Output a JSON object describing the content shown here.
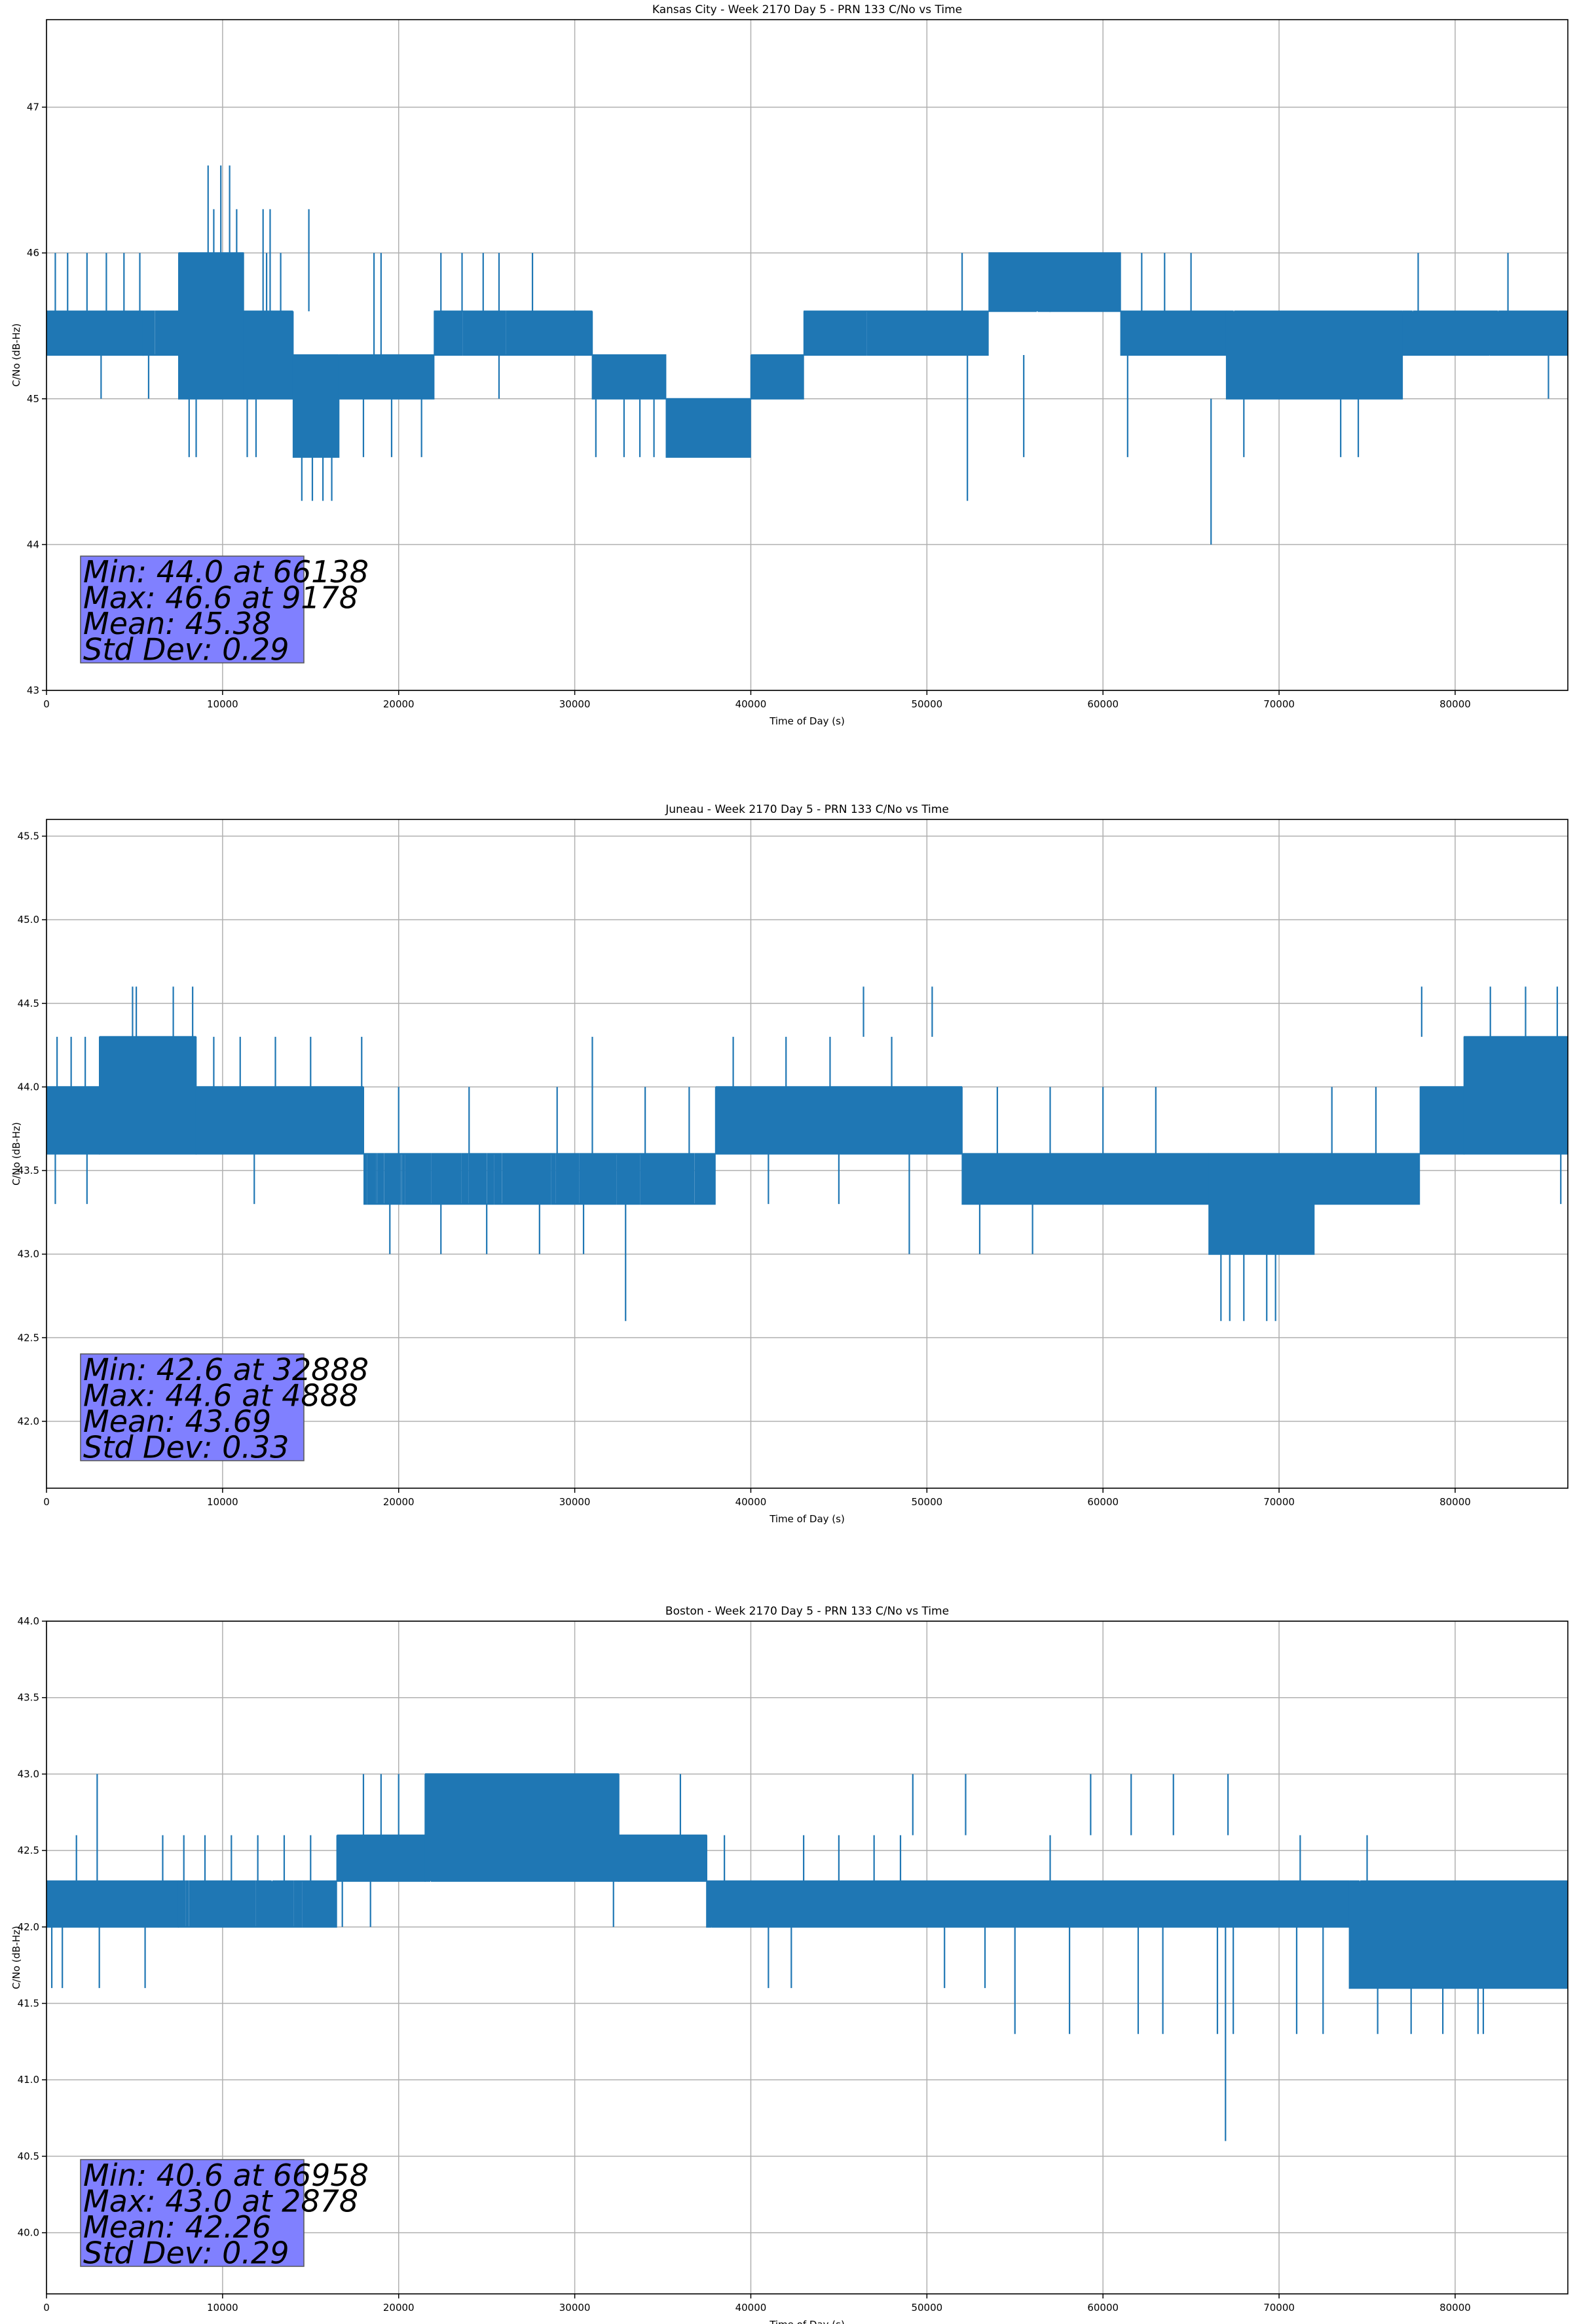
{
  "chart_data": [
    {
      "type": "line",
      "title": "Kansas City - Week 2170 Day 5 - PRN 133 C/No vs Time",
      "xlabel": "Time of Day (s)",
      "ylabel": "C/No (dB-Hz)",
      "xlim": [
        0,
        86400
      ],
      "ylim": [
        43.0,
        47.6
      ],
      "xticks": [
        0,
        10000,
        20000,
        30000,
        40000,
        50000,
        60000,
        70000,
        80000
      ],
      "yticks": [
        43,
        44,
        45,
        46,
        47
      ],
      "ytick_labels": [
        "43",
        "44",
        "45",
        "46",
        "47"
      ],
      "grid": true,
      "color": "#1f77b4",
      "stats": [
        "Min: 44.0 at 66138",
        "Max: 46.6 at 9178",
        "Mean: 45.38",
        "Std Dev: 0.29"
      ],
      "segments": [
        {
          "x": [
            0,
            5500
          ],
          "lo": 45.3,
          "hi": 45.6,
          "n": 160
        },
        {
          "x": [
            5500,
            7500
          ],
          "lo": 45.3,
          "hi": 45.6,
          "n": 40
        },
        {
          "x": [
            7500,
            11200
          ],
          "lo": 45.0,
          "hi": 46.0,
          "n": 130
        },
        {
          "x": [
            11200,
            14000
          ],
          "lo": 45.0,
          "hi": 45.6,
          "n": 90
        },
        {
          "x": [
            14000,
            16600
          ],
          "lo": 44.6,
          "hi": 45.3,
          "n": 90
        },
        {
          "x": [
            16600,
            22000
          ],
          "lo": 45.0,
          "hi": 45.3,
          "n": 140
        },
        {
          "x": [
            22000,
            31000
          ],
          "lo": 45.3,
          "hi": 45.6,
          "n": 200
        },
        {
          "x": [
            31000,
            35200
          ],
          "lo": 45.0,
          "hi": 45.3,
          "n": 100
        },
        {
          "x": [
            35200,
            40000
          ],
          "lo": 44.6,
          "hi": 45.0,
          "n": 140
        },
        {
          "x": [
            40000,
            43000
          ],
          "lo": 45.0,
          "hi": 45.3,
          "n": 90
        },
        {
          "x": [
            43000,
            53500
          ],
          "lo": 45.3,
          "hi": 45.6,
          "n": 240
        },
        {
          "x": [
            53500,
            57000
          ],
          "lo": 45.6,
          "hi": 46.0,
          "n": 90
        },
        {
          "x": [
            57000,
            61000
          ],
          "lo": 45.6,
          "hi": 46.0,
          "n": 220
        },
        {
          "x": [
            61000,
            67000
          ],
          "lo": 45.3,
          "hi": 45.6,
          "n": 180
        },
        {
          "x": [
            67000,
            77000
          ],
          "lo": 45.0,
          "hi": 45.6,
          "n": 280
        },
        {
          "x": [
            77000,
            86400
          ],
          "lo": 45.3,
          "hi": 45.6,
          "n": 260
        }
      ],
      "spikes": [
        [
          500,
          45.6,
          46.0
        ],
        [
          1200,
          45.6,
          46.0
        ],
        [
          2300,
          45.6,
          46.0
        ],
        [
          3400,
          45.6,
          46.0
        ],
        [
          4400,
          45.6,
          46.0
        ],
        [
          5300,
          45.6,
          46.0
        ],
        [
          3100,
          45.3,
          45.0
        ],
        [
          5800,
          45.3,
          45.0
        ],
        [
          8100,
          45.0,
          44.6
        ],
        [
          8500,
          45.0,
          44.6
        ],
        [
          9178,
          46.0,
          46.6
        ],
        [
          9900,
          46.0,
          46.6
        ],
        [
          10400,
          46.0,
          46.6
        ],
        [
          9500,
          46.0,
          46.3
        ],
        [
          10800,
          46.0,
          46.3
        ],
        [
          12300,
          45.6,
          46.3
        ],
        [
          12700,
          45.6,
          46.3
        ],
        [
          14900,
          45.6,
          46.3
        ],
        [
          12500,
          45.6,
          46.0
        ],
        [
          13300,
          45.6,
          46.0
        ],
        [
          11400,
          45.0,
          44.6
        ],
        [
          11900,
          45.0,
          44.6
        ],
        [
          14500,
          44.6,
          44.3
        ],
        [
          15100,
          44.6,
          44.3
        ],
        [
          15700,
          44.6,
          44.3
        ],
        [
          16200,
          44.6,
          44.3
        ],
        [
          18600,
          45.3,
          46.0
        ],
        [
          19000,
          45.3,
          46.0
        ],
        [
          18000,
          45.0,
          44.6
        ],
        [
          19600,
          45.0,
          44.6
        ],
        [
          21300,
          45.0,
          44.6
        ],
        [
          22400,
          45.6,
          46.0
        ],
        [
          23600,
          45.6,
          46.0
        ],
        [
          24800,
          45.6,
          46.0
        ],
        [
          25700,
          45.6,
          46.0
        ],
        [
          27600,
          45.6,
          46.0
        ],
        [
          25700,
          45.3,
          45.0
        ],
        [
          31200,
          45.0,
          44.6
        ],
        [
          32800,
          45.0,
          44.6
        ],
        [
          33700,
          45.0,
          44.6
        ],
        [
          34500,
          45.0,
          44.6
        ],
        [
          52000,
          45.6,
          46.0
        ],
        [
          52300,
          45.3,
          44.3
        ],
        [
          55500,
          45.3,
          44.6
        ],
        [
          61400,
          45.3,
          44.6
        ],
        [
          62200,
          45.6,
          46.0
        ],
        [
          63500,
          45.6,
          46.0
        ],
        [
          65000,
          45.6,
          46.0
        ],
        [
          66138,
          45.0,
          44.0
        ],
        [
          68000,
          45.0,
          44.6
        ],
        [
          73500,
          45.0,
          44.6
        ],
        [
          74500,
          45.0,
          44.6
        ],
        [
          77900,
          45.6,
          46.0
        ],
        [
          83000,
          45.6,
          46.0
        ],
        [
          85300,
          45.3,
          45.0
        ]
      ]
    },
    {
      "type": "line",
      "title": "Juneau - Week 2170 Day 5 - PRN 133 C/No vs Time",
      "xlabel": "Time of Day (s)",
      "ylabel": "C/No (dB-Hz)",
      "xlim": [
        0,
        86400
      ],
      "ylim": [
        41.6,
        45.6
      ],
      "xticks": [
        0,
        10000,
        20000,
        30000,
        40000,
        50000,
        60000,
        70000,
        80000
      ],
      "yticks": [
        42.0,
        42.5,
        43.0,
        43.5,
        44.0,
        44.5,
        45.0,
        45.5
      ],
      "ytick_labels": [
        "42.0",
        "42.5",
        "43.0",
        "43.5",
        "44.0",
        "44.5",
        "45.0",
        "45.5"
      ],
      "grid": true,
      "color": "#1f77b4",
      "stats": [
        "Min: 42.6 at 32888",
        "Max: 44.6 at 4888",
        "Mean: 43.69",
        "Std Dev: 0.33"
      ],
      "segments": [
        {
          "x": [
            0,
            3000
          ],
          "lo": 43.6,
          "hi": 44.0,
          "n": 110
        },
        {
          "x": [
            3000,
            8500
          ],
          "lo": 43.6,
          "hi": 44.3,
          "n": 200
        },
        {
          "x": [
            8500,
            18000
          ],
          "lo": 43.6,
          "hi": 44.0,
          "n": 260
        },
        {
          "x": [
            18000,
            38000
          ],
          "lo": 43.3,
          "hi": 43.6,
          "n": 420
        },
        {
          "x": [
            38000,
            52000
          ],
          "lo": 43.6,
          "hi": 44.0,
          "n": 360
        },
        {
          "x": [
            52000,
            66000
          ],
          "lo": 43.3,
          "hi": 43.6,
          "n": 330
        },
        {
          "x": [
            66000,
            72000
          ],
          "lo": 43.0,
          "hi": 43.6,
          "n": 200
        },
        {
          "x": [
            72000,
            78000
          ],
          "lo": 43.3,
          "hi": 43.6,
          "n": 150
        },
        {
          "x": [
            78000,
            80500
          ],
          "lo": 43.6,
          "hi": 44.0,
          "n": 90
        },
        {
          "x": [
            80500,
            86400
          ],
          "lo": 43.6,
          "hi": 44.3,
          "n": 200
        }
      ],
      "spikes": [
        [
          600,
          44.0,
          44.3
        ],
        [
          1400,
          44.0,
          44.3
        ],
        [
          2200,
          44.0,
          44.3
        ],
        [
          4888,
          44.3,
          44.6
        ],
        [
          5100,
          44.3,
          44.6
        ],
        [
          7200,
          44.3,
          44.6
        ],
        [
          8300,
          44.3,
          44.6
        ],
        [
          500,
          43.6,
          43.3
        ],
        [
          2300,
          43.6,
          43.3
        ],
        [
          11800,
          43.6,
          43.3
        ],
        [
          9500,
          44.0,
          44.3
        ],
        [
          11000,
          44.0,
          44.3
        ],
        [
          13000,
          44.0,
          44.3
        ],
        [
          15000,
          44.0,
          44.3
        ],
        [
          17900,
          44.0,
          44.3
        ],
        [
          19500,
          43.3,
          43.0
        ],
        [
          22400,
          43.3,
          43.0
        ],
        [
          25000,
          43.3,
          43.0
        ],
        [
          28000,
          43.3,
          43.0
        ],
        [
          30500,
          43.3,
          43.0
        ],
        [
          32888,
          43.3,
          42.6
        ],
        [
          20000,
          43.6,
          44.0
        ],
        [
          24000,
          43.6,
          44.0
        ],
        [
          29000,
          43.6,
          44.0
        ],
        [
          31000,
          43.6,
          44.3
        ],
        [
          34000,
          43.6,
          44.0
        ],
        [
          36500,
          43.6,
          44.0
        ],
        [
          39000,
          44.0,
          44.3
        ],
        [
          42000,
          44.0,
          44.3
        ],
        [
          44500,
          44.0,
          44.3
        ],
        [
          46400,
          44.3,
          44.6
        ],
        [
          48000,
          44.0,
          44.3
        ],
        [
          50300,
          44.3,
          44.6
        ],
        [
          41000,
          43.6,
          43.3
        ],
        [
          45000,
          43.6,
          43.3
        ],
        [
          49000,
          43.6,
          43.0
        ],
        [
          54000,
          43.6,
          44.0
        ],
        [
          57000,
          43.6,
          44.0
        ],
        [
          60000,
          43.6,
          44.0
        ],
        [
          63000,
          43.6,
          44.0
        ],
        [
          53000,
          43.3,
          43.0
        ],
        [
          56000,
          43.3,
          43.0
        ],
        [
          66700,
          43.0,
          42.6
        ],
        [
          67200,
          43.0,
          42.6
        ],
        [
          68000,
          43.0,
          42.6
        ],
        [
          69300,
          43.0,
          42.6
        ],
        [
          69800,
          43.0,
          42.6
        ],
        [
          73000,
          43.6,
          44.0
        ],
        [
          75500,
          43.6,
          44.0
        ],
        [
          78100,
          44.3,
          44.6
        ],
        [
          82000,
          44.3,
          44.6
        ],
        [
          84000,
          44.3,
          44.6
        ],
        [
          85800,
          44.3,
          44.6
        ],
        [
          86000,
          43.6,
          43.3
        ]
      ]
    },
    {
      "type": "line",
      "title": "Boston - Week 2170 Day 5 - PRN 133 C/No vs Time",
      "xlabel": "Time of Day (s)",
      "ylabel": "C/No (dB-Hz)",
      "xlim": [
        0,
        86400
      ],
      "ylim": [
        39.6,
        44.0
      ],
      "xticks": [
        0,
        10000,
        20000,
        30000,
        40000,
        50000,
        60000,
        70000,
        80000
      ],
      "yticks": [
        40.0,
        40.5,
        41.0,
        41.5,
        42.0,
        42.5,
        43.0,
        43.5,
        44.0
      ],
      "ytick_labels": [
        "40.0",
        "40.5",
        "41.0",
        "41.5",
        "42.0",
        "42.5",
        "43.0",
        "43.5",
        "44.0"
      ],
      "grid": true,
      "color": "#1f77b4",
      "stats": [
        "Min: 40.6 at 66958",
        "Max: 43.0 at 2878",
        "Mean: 42.26",
        "Std Dev: 0.29"
      ],
      "segments": [
        {
          "x": [
            0,
            7500
          ],
          "lo": 42.0,
          "hi": 42.3,
          "n": 260
        },
        {
          "x": [
            7500,
            16500
          ],
          "lo": 42.0,
          "hi": 42.3,
          "n": 200
        },
        {
          "x": [
            16500,
            21500
          ],
          "lo": 42.3,
          "hi": 42.6,
          "n": 200
        },
        {
          "x": [
            21500,
            32500
          ],
          "lo": 42.3,
          "hi": 43.0,
          "n": 320
        },
        {
          "x": [
            32500,
            37500
          ],
          "lo": 42.3,
          "hi": 42.6,
          "n": 140
        },
        {
          "x": [
            37500,
            74000
          ],
          "lo": 42.0,
          "hi": 42.3,
          "n": 900
        },
        {
          "x": [
            74000,
            86400
          ],
          "lo": 41.6,
          "hi": 42.3,
          "n": 340
        }
      ],
      "spikes": [
        [
          300,
          42.0,
          41.6
        ],
        [
          900,
          42.0,
          41.6
        ],
        [
          1700,
          42.3,
          42.6
        ],
        [
          2878,
          42.3,
          43.0
        ],
        [
          3000,
          42.0,
          41.6
        ],
        [
          5600,
          42.0,
          41.6
        ],
        [
          6600,
          42.3,
          42.6
        ],
        [
          7800,
          42.3,
          42.6
        ],
        [
          9000,
          42.3,
          42.6
        ],
        [
          10500,
          42.3,
          42.6
        ],
        [
          12000,
          42.3,
          42.6
        ],
        [
          13500,
          42.3,
          42.6
        ],
        [
          15000,
          42.3,
          42.6
        ],
        [
          18000,
          42.6,
          43.0
        ],
        [
          19000,
          42.6,
          43.0
        ],
        [
          20000,
          42.6,
          43.0
        ],
        [
          16800,
          42.3,
          42.0
        ],
        [
          18400,
          42.3,
          42.0
        ],
        [
          36000,
          42.6,
          43.0
        ],
        [
          32200,
          42.3,
          42.0
        ],
        [
          38500,
          42.3,
          42.6
        ],
        [
          41000,
          42.0,
          41.6
        ],
        [
          42300,
          42.0,
          41.6
        ],
        [
          43000,
          42.3,
          42.6
        ],
        [
          45000,
          42.3,
          42.6
        ],
        [
          47000,
          42.3,
          42.6
        ],
        [
          48500,
          42.3,
          42.6
        ],
        [
          49200,
          42.6,
          43.0
        ],
        [
          52200,
          42.6,
          43.0
        ],
        [
          51000,
          42.0,
          41.6
        ],
        [
          53300,
          42.0,
          41.6
        ],
        [
          55000,
          42.0,
          41.3
        ],
        [
          57000,
          42.3,
          42.6
        ],
        [
          58100,
          42.0,
          41.3
        ],
        [
          59300,
          42.6,
          43.0
        ],
        [
          61600,
          42.6,
          43.0
        ],
        [
          62000,
          42.0,
          41.3
        ],
        [
          63400,
          42.0,
          41.3
        ],
        [
          64000,
          42.6,
          43.0
        ],
        [
          66500,
          42.0,
          41.3
        ],
        [
          66958,
          42.0,
          40.6
        ],
        [
          67400,
          42.0,
          41.3
        ],
        [
          67100,
          42.6,
          43.0
        ],
        [
          71000,
          42.0,
          41.3
        ],
        [
          72500,
          42.0,
          41.3
        ],
        [
          71200,
          42.3,
          42.6
        ],
        [
          75000,
          42.3,
          42.6
        ],
        [
          75600,
          41.6,
          41.3
        ],
        [
          77500,
          41.6,
          41.3
        ],
        [
          79300,
          41.6,
          41.3
        ],
        [
          81300,
          41.6,
          41.3
        ],
        [
          81600,
          41.6,
          41.3
        ]
      ]
    }
  ]
}
